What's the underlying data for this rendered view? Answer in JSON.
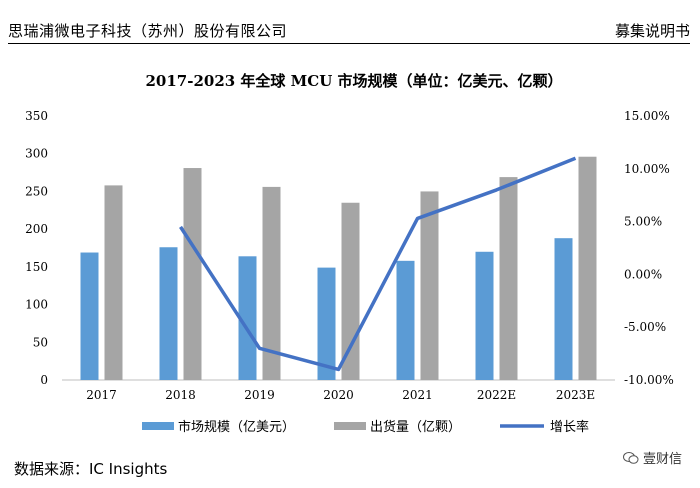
{
  "header": {
    "company": "思瑞浦微电子科技（苏州）股份有限公司",
    "doc_type": "募集说明书"
  },
  "footer": {
    "source": "数据来源：IC Insights",
    "watermark": "壹财信",
    "watermark_icon": "wechat-icon"
  },
  "chart_data": {
    "type": "bar",
    "title": "2017-2023 年全球 MCU 市场规模（单位：亿美元、亿颗）",
    "categories": [
      "2017",
      "2018",
      "2019",
      "2020",
      "2021",
      "2022E",
      "2023E"
    ],
    "series": [
      {
        "name": "市场规模（亿美元）",
        "type": "bar",
        "axis": "left",
        "color": "#5B9BD5",
        "values": [
          169,
          176,
          164,
          149,
          158,
          170,
          188
        ]
      },
      {
        "name": "出货量（亿颗）",
        "type": "bar",
        "axis": "left",
        "color": "#A5A5A5",
        "values": [
          258,
          281,
          256,
          235,
          250,
          269,
          296
        ]
      },
      {
        "name": "增长率",
        "type": "line",
        "axis": "right",
        "color": "#4472C4",
        "values": [
          null,
          0.045,
          -0.07,
          -0.09,
          0.053,
          0.08,
          0.11
        ]
      }
    ],
    "y_left": {
      "min": 0,
      "max": 350,
      "step": 50,
      "ticks": [
        "0",
        "50",
        "100",
        "150",
        "200",
        "250",
        "300",
        "350"
      ]
    },
    "y_right": {
      "min": -0.1,
      "max": 0.15,
      "step": 0.05,
      "ticks": [
        "-10.00%",
        "-5.00%",
        "0.00%",
        "5.00%",
        "10.00%",
        "15.00%"
      ]
    },
    "grid": false,
    "legend_position": "bottom"
  }
}
